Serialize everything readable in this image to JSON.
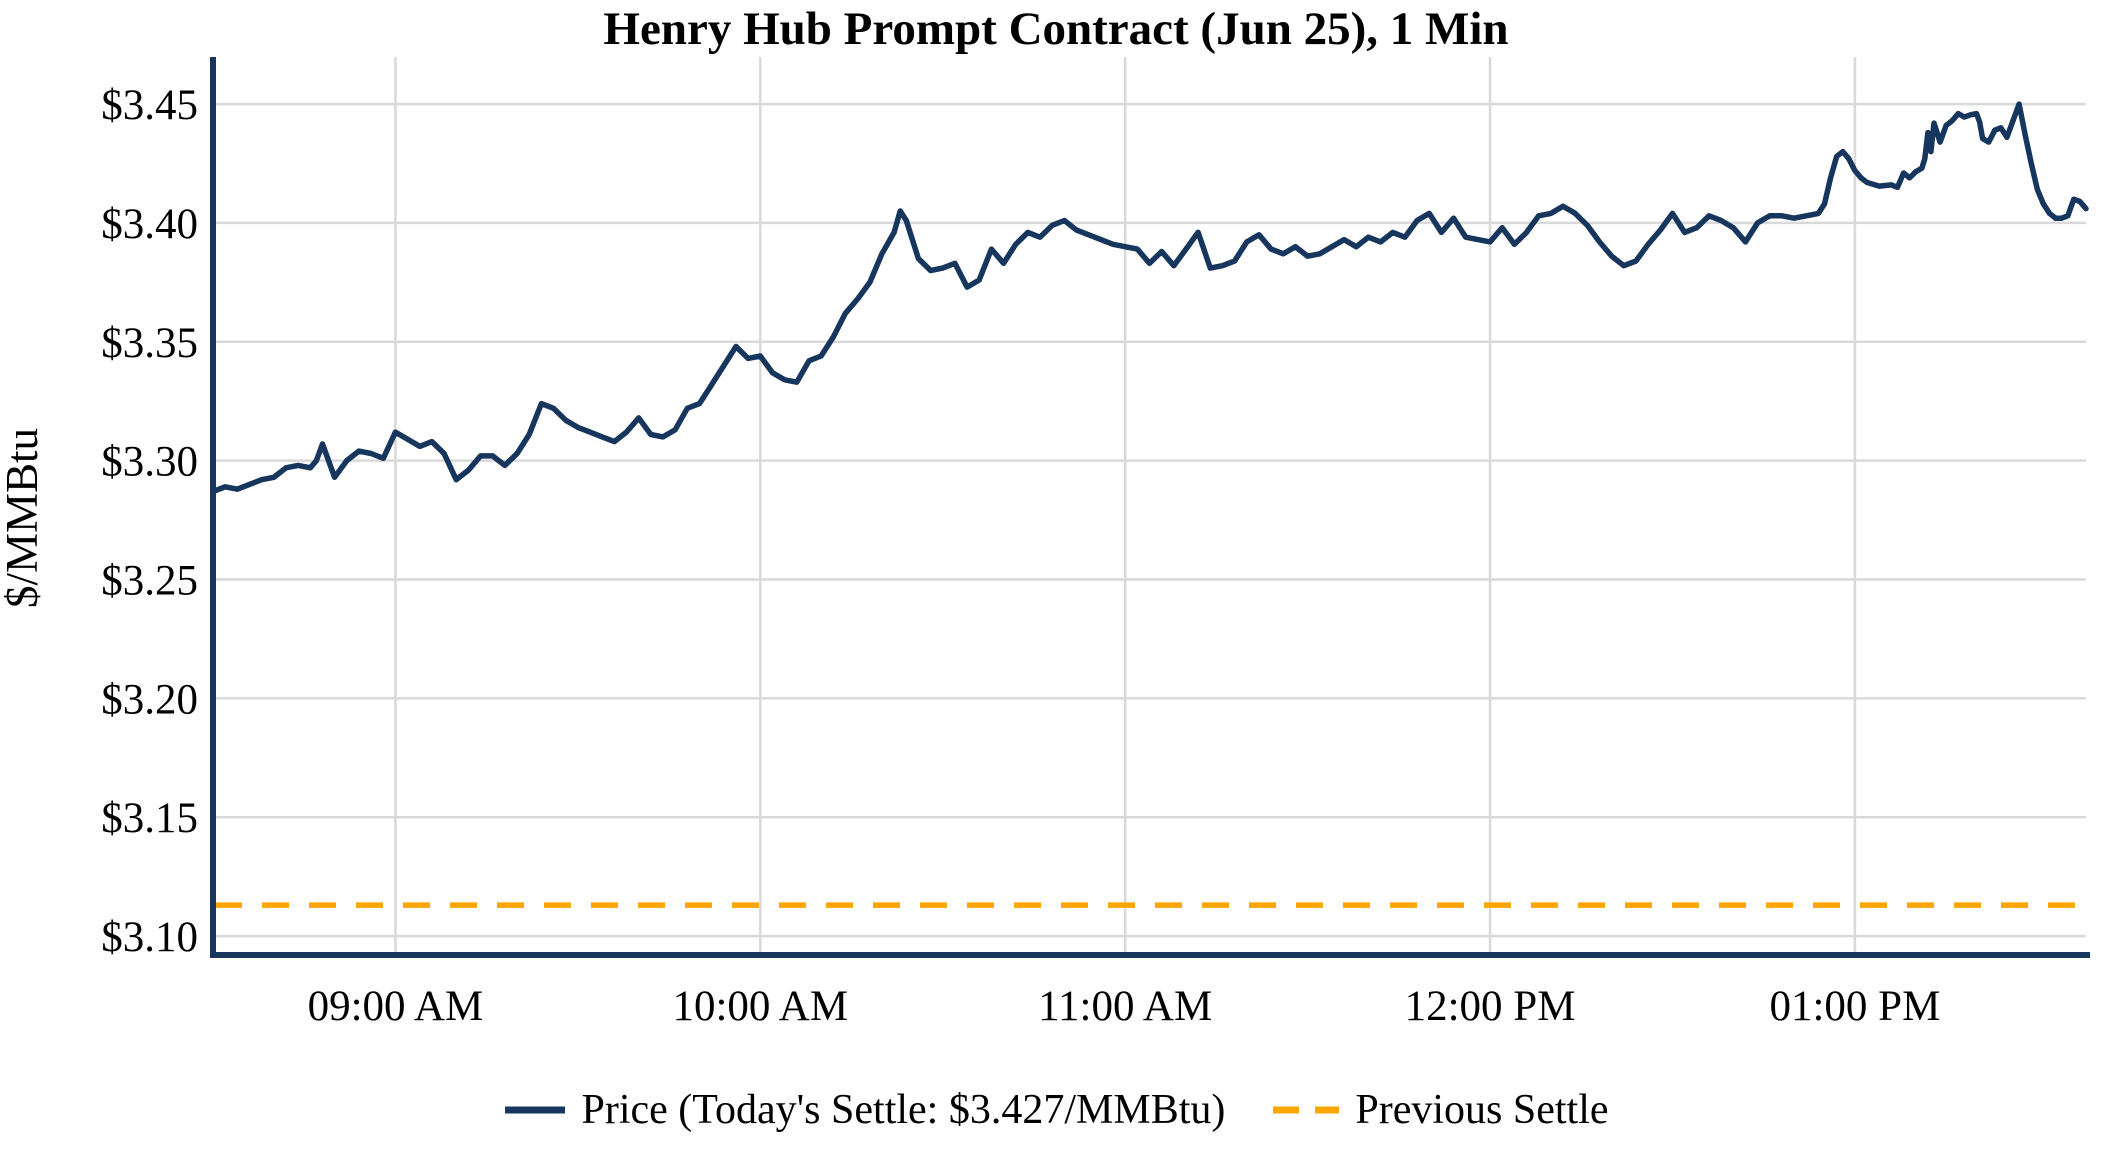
{
  "title": "Henry Hub Prompt Contract (Jun 25), 1 Min",
  "y_axis_label": "$/MMBtu",
  "legend": {
    "price_label": "Price (Today's Settle: $3.427/MMBtu)",
    "previous_settle_label": "Previous Settle"
  },
  "colors": {
    "price_line": "#17365d",
    "previous_settle_line": "#ffa500",
    "grid": "#d9d9d9",
    "axis_spine": "#17365d",
    "text": "#000000"
  },
  "chart_data": {
    "type": "line",
    "title": "Henry Hub Prompt Contract (Jun 25), 1 Min",
    "xlabel": "",
    "ylabel": "$/MMBtu",
    "x_unit": "minutes after 08:30 AM",
    "grid": true,
    "legend_position": "bottom",
    "todays_settle": 3.427,
    "previous_settle": 3.113,
    "ylim": [
      3.0933,
      3.4698
    ],
    "xlim_minutes": [
      0,
      308
    ],
    "y_ticks": [
      {
        "value": 3.45,
        "label": "$3.45"
      },
      {
        "value": 3.4,
        "label": "$3.40"
      },
      {
        "value": 3.35,
        "label": "$3.35"
      },
      {
        "value": 3.3,
        "label": "$3.30"
      },
      {
        "value": 3.25,
        "label": "$3.25"
      },
      {
        "value": 3.2,
        "label": "$3.20"
      },
      {
        "value": 3.15,
        "label": "$3.15"
      },
      {
        "value": 3.1,
        "label": "$3.10"
      }
    ],
    "x_ticks": [
      {
        "minutes": 30,
        "label": "09:00 AM"
      },
      {
        "minutes": 90,
        "label": "10:00 AM"
      },
      {
        "minutes": 150,
        "label": "11:00 AM"
      },
      {
        "minutes": 210,
        "label": "12:00 PM"
      },
      {
        "minutes": 270,
        "label": "01:00 PM"
      }
    ],
    "series": [
      {
        "name": "Price (Today's Settle: $3.427/MMBtu)",
        "points": [
          [
            0,
            3.287
          ],
          [
            2,
            3.289
          ],
          [
            4,
            3.288
          ],
          [
            6,
            3.29
          ],
          [
            8,
            3.292
          ],
          [
            10,
            3.293
          ],
          [
            12,
            3.297
          ],
          [
            14,
            3.298
          ],
          [
            16,
            3.297
          ],
          [
            17,
            3.3
          ],
          [
            18,
            3.307
          ],
          [
            20,
            3.293
          ],
          [
            22,
            3.3
          ],
          [
            24,
            3.304
          ],
          [
            26,
            3.303
          ],
          [
            28,
            3.301
          ],
          [
            30,
            3.312
          ],
          [
            32,
            3.309
          ],
          [
            34,
            3.306
          ],
          [
            36,
            3.308
          ],
          [
            38,
            3.303
          ],
          [
            40,
            3.292
          ],
          [
            42,
            3.296
          ],
          [
            44,
            3.302
          ],
          [
            46,
            3.302
          ],
          [
            48,
            3.298
          ],
          [
            50,
            3.303
          ],
          [
            52,
            3.311
          ],
          [
            54,
            3.324
          ],
          [
            56,
            3.322
          ],
          [
            58,
            3.317
          ],
          [
            60,
            3.314
          ],
          [
            62,
            3.312
          ],
          [
            64,
            3.31
          ],
          [
            66,
            3.308
          ],
          [
            68,
            3.312
          ],
          [
            70,
            3.318
          ],
          [
            72,
            3.311
          ],
          [
            74,
            3.31
          ],
          [
            76,
            3.313
          ],
          [
            78,
            3.322
          ],
          [
            80,
            3.324
          ],
          [
            82,
            3.332
          ],
          [
            84,
            3.34
          ],
          [
            86,
            3.348
          ],
          [
            88,
            3.343
          ],
          [
            90,
            3.344
          ],
          [
            92,
            3.337
          ],
          [
            94,
            3.334
          ],
          [
            96,
            3.333
          ],
          [
            98,
            3.342
          ],
          [
            100,
            3.344
          ],
          [
            102,
            3.352
          ],
          [
            104,
            3.362
          ],
          [
            106,
            3.368
          ],
          [
            108,
            3.375
          ],
          [
            110,
            3.387
          ],
          [
            112,
            3.396
          ],
          [
            113,
            3.405
          ],
          [
            114,
            3.401
          ],
          [
            116,
            3.385
          ],
          [
            118,
            3.38
          ],
          [
            120,
            3.381
          ],
          [
            122,
            3.383
          ],
          [
            124,
            3.373
          ],
          [
            126,
            3.376
          ],
          [
            128,
            3.389
          ],
          [
            130,
            3.383
          ],
          [
            132,
            3.391
          ],
          [
            134,
            3.396
          ],
          [
            136,
            3.394
          ],
          [
            138,
            3.399
          ],
          [
            140,
            3.401
          ],
          [
            142,
            3.397
          ],
          [
            144,
            3.395
          ],
          [
            146,
            3.393
          ],
          [
            148,
            3.391
          ],
          [
            150,
            3.39
          ],
          [
            152,
            3.389
          ],
          [
            154,
            3.383
          ],
          [
            156,
            3.388
          ],
          [
            158,
            3.382
          ],
          [
            160,
            3.389
          ],
          [
            162,
            3.396
          ],
          [
            164,
            3.381
          ],
          [
            166,
            3.382
          ],
          [
            168,
            3.384
          ],
          [
            170,
            3.392
          ],
          [
            172,
            3.395
          ],
          [
            174,
            3.389
          ],
          [
            176,
            3.387
          ],
          [
            178,
            3.39
          ],
          [
            180,
            3.386
          ],
          [
            182,
            3.387
          ],
          [
            184,
            3.39
          ],
          [
            186,
            3.393
          ],
          [
            188,
            3.39
          ],
          [
            190,
            3.394
          ],
          [
            192,
            3.392
          ],
          [
            194,
            3.396
          ],
          [
            196,
            3.394
          ],
          [
            198,
            3.401
          ],
          [
            200,
            3.404
          ],
          [
            202,
            3.396
          ],
          [
            204,
            3.402
          ],
          [
            206,
            3.394
          ],
          [
            208,
            3.393
          ],
          [
            210,
            3.392
          ],
          [
            212,
            3.398
          ],
          [
            214,
            3.391
          ],
          [
            216,
            3.396
          ],
          [
            218,
            3.403
          ],
          [
            220,
            3.404
          ],
          [
            222,
            3.407
          ],
          [
            224,
            3.404
          ],
          [
            226,
            3.399
          ],
          [
            228,
            3.392
          ],
          [
            230,
            3.386
          ],
          [
            232,
            3.382
          ],
          [
            234,
            3.384
          ],
          [
            236,
            3.391
          ],
          [
            238,
            3.397
          ],
          [
            240,
            3.404
          ],
          [
            242,
            3.396
          ],
          [
            244,
            3.398
          ],
          [
            246,
            3.403
          ],
          [
            248,
            3.401
          ],
          [
            250,
            3.398
          ],
          [
            252,
            3.392
          ],
          [
            254,
            3.4
          ],
          [
            256,
            3.403
          ],
          [
            258,
            3.403
          ],
          [
            260,
            3.402
          ],
          [
            262,
            3.403
          ],
          [
            264,
            3.404
          ],
          [
            265,
            3.408
          ],
          [
            266,
            3.419
          ],
          [
            267,
            3.428
          ],
          [
            268,
            3.43
          ],
          [
            269,
            3.427
          ],
          [
            270,
            3.422
          ],
          [
            271,
            3.419
          ],
          [
            272,
            3.417
          ],
          [
            274,
            3.4155
          ],
          [
            276,
            3.416
          ],
          [
            277,
            3.415
          ],
          [
            278,
            3.421
          ],
          [
            279,
            3.419
          ],
          [
            280,
            3.4215
          ],
          [
            281,
            3.423
          ],
          [
            281.5,
            3.427
          ],
          [
            282,
            3.438
          ],
          [
            282.5,
            3.43
          ],
          [
            283,
            3.442
          ],
          [
            284,
            3.434
          ],
          [
            285,
            3.441
          ],
          [
            286,
            3.443
          ],
          [
            287,
            3.446
          ],
          [
            288,
            3.4445
          ],
          [
            289,
            3.4455
          ],
          [
            290,
            3.446
          ],
          [
            290.5,
            3.4425
          ],
          [
            291,
            3.4355
          ],
          [
            292,
            3.434
          ],
          [
            293,
            3.439
          ],
          [
            294,
            3.44
          ],
          [
            295,
            3.436
          ],
          [
            296,
            3.443
          ],
          [
            297,
            3.45
          ],
          [
            298,
            3.437
          ],
          [
            299,
            3.425
          ],
          [
            300,
            3.414
          ],
          [
            301,
            3.408
          ],
          [
            302,
            3.404
          ],
          [
            303,
            3.402
          ],
          [
            304,
            3.402
          ],
          [
            305,
            3.403
          ],
          [
            306,
            3.41
          ],
          [
            307,
            3.409
          ],
          [
            308,
            3.406
          ]
        ]
      },
      {
        "name": "Previous Settle",
        "style": "dashed",
        "constant_value": 3.113
      }
    ]
  }
}
